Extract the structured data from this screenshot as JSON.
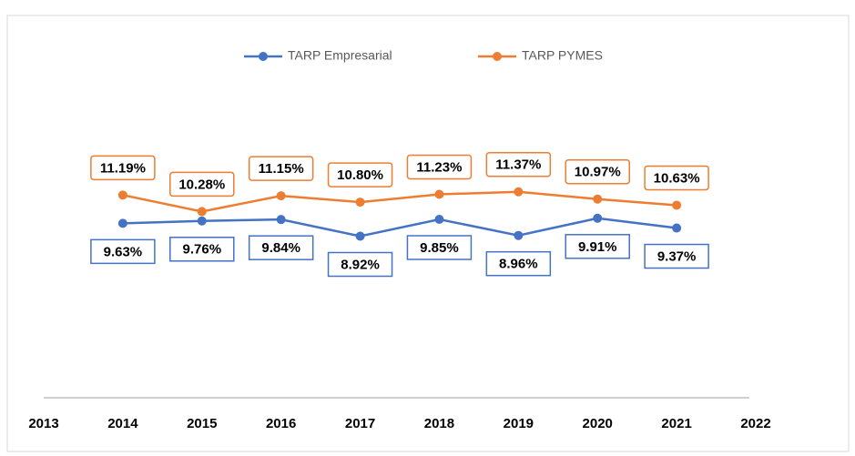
{
  "chart_data": {
    "type": "line",
    "x": [
      2014,
      2015,
      2016,
      2017,
      2018,
      2019,
      2020,
      2021
    ],
    "xlim": [
      2013,
      2022
    ],
    "xticks": [
      2013,
      2014,
      2015,
      2016,
      2017,
      2018,
      2019,
      2020,
      2021,
      2022
    ],
    "ylim": [
      0,
      20
    ],
    "grid": false,
    "legend": "top",
    "series": [
      {
        "name": "TARP Empresarial",
        "color": "#4472c4",
        "values": [
          9.63,
          9.76,
          9.84,
          8.92,
          9.85,
          8.96,
          9.91,
          9.37
        ],
        "value_labels": [
          "9.63%",
          "9.76%",
          "9.84%",
          "8.92%",
          "9.85%",
          "8.96%",
          "9.91%",
          "9.37%"
        ]
      },
      {
        "name": "TARP PYMES",
        "color": "#ed7d31",
        "values": [
          11.19,
          10.28,
          11.15,
          10.8,
          11.23,
          11.37,
          10.97,
          10.63
        ],
        "value_labels": [
          "11.19%",
          "10.28%",
          "11.15%",
          "10.80%",
          "11.23%",
          "11.37%",
          "10.97%",
          "10.63%"
        ]
      }
    ]
  }
}
